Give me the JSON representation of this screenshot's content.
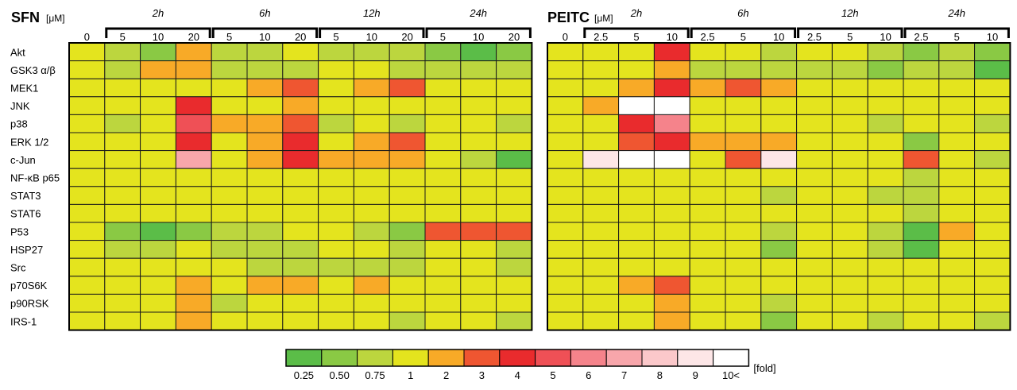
{
  "chart_data": {
    "type": "heatmap",
    "unit": "[fold]",
    "rows": [
      "Akt",
      "GSK3 α/β",
      "MEK1",
      "JNK",
      "p38",
      "ERK 1/2",
      "c-Jun",
      "NF-κB p65",
      "STAT3",
      "STAT6",
      "P53",
      "HSP27",
      "Src",
      "p70S6K",
      "p90RSK",
      "IRS-1"
    ],
    "panels": [
      {
        "name": "sfn",
        "title": "SFN",
        "unit": "[μM]",
        "columns": [
          {
            "time": "",
            "dose": "0"
          },
          {
            "time": "2h",
            "dose": "5"
          },
          {
            "time": "2h",
            "dose": "10"
          },
          {
            "time": "2h",
            "dose": "20"
          },
          {
            "time": "6h",
            "dose": "5"
          },
          {
            "time": "6h",
            "dose": "10"
          },
          {
            "time": "6h",
            "dose": "20"
          },
          {
            "time": "12h",
            "dose": "5"
          },
          {
            "time": "12h",
            "dose": "10"
          },
          {
            "time": "12h",
            "dose": "20"
          },
          {
            "time": "24h",
            "dose": "5"
          },
          {
            "time": "24h",
            "dose": "10"
          },
          {
            "time": "24h",
            "dose": "20"
          }
        ],
        "time_groups": [
          {
            "label": "2h",
            "start": 1,
            "end": 3
          },
          {
            "label": "6h",
            "start": 4,
            "end": 6
          },
          {
            "label": "12h",
            "start": 7,
            "end": 9
          },
          {
            "label": "24h",
            "start": 10,
            "end": 12
          }
        ],
        "values": [
          [
            1,
            0.75,
            0.5,
            2,
            0.75,
            0.75,
            1,
            0.75,
            0.75,
            0.75,
            0.5,
            0.25,
            0.5
          ],
          [
            1,
            0.75,
            2,
            2,
            0.75,
            0.75,
            0.75,
            1,
            1,
            0.75,
            0.75,
            0.75,
            0.75
          ],
          [
            1,
            1,
            1,
            1,
            1,
            2,
            3,
            1,
            2,
            3,
            1,
            1,
            1
          ],
          [
            1,
            1,
            1,
            4,
            1,
            1,
            2,
            1,
            1,
            1,
            1,
            1,
            1
          ],
          [
            1,
            0.75,
            1,
            5,
            2,
            2,
            3,
            0.75,
            1,
            0.75,
            1,
            1,
            0.75
          ],
          [
            1,
            1,
            1,
            4,
            1,
            2,
            4,
            1,
            2,
            3,
            1,
            1,
            1
          ],
          [
            1,
            1,
            1,
            7,
            1,
            2,
            4,
            2,
            2,
            2,
            1,
            0.75,
            0.25
          ],
          [
            1,
            1,
            1,
            1,
            1,
            1,
            1,
            1,
            1,
            1,
            1,
            1,
            1
          ],
          [
            1,
            1,
            1,
            1,
            1,
            1,
            1,
            1,
            1,
            1,
            1,
            1,
            1
          ],
          [
            1,
            1,
            1,
            1,
            1,
            1,
            1,
            1,
            1,
            1,
            1,
            1,
            1
          ],
          [
            1,
            0.5,
            0.25,
            0.5,
            0.75,
            0.75,
            1,
            1,
            0.75,
            0.5,
            3,
            3,
            3
          ],
          [
            1,
            0.75,
            0.75,
            1,
            0.75,
            0.75,
            0.75,
            1,
            1,
            0.75,
            1,
            1,
            0.75
          ],
          [
            1,
            1,
            1,
            1,
            1,
            0.75,
            0.75,
            0.75,
            0.75,
            0.75,
            1,
            1,
            0.75
          ],
          [
            1,
            1,
            1,
            2,
            1,
            2,
            2,
            1,
            2,
            1,
            1,
            1,
            1
          ],
          [
            1,
            1,
            1,
            2,
            0.75,
            1,
            1,
            1,
            1,
            1,
            1,
            1,
            1
          ],
          [
            1,
            1,
            1,
            2,
            1,
            1,
            1,
            1,
            1,
            0.75,
            1,
            1,
            0.75
          ]
        ]
      },
      {
        "name": "peitc",
        "title": "PEITC",
        "unit": "[μM]",
        "columns": [
          {
            "time": "",
            "dose": "0"
          },
          {
            "time": "2h",
            "dose": "2.5"
          },
          {
            "time": "2h",
            "dose": "5"
          },
          {
            "time": "2h",
            "dose": "10"
          },
          {
            "time": "6h",
            "dose": "2.5"
          },
          {
            "time": "6h",
            "dose": "5"
          },
          {
            "time": "6h",
            "dose": "10"
          },
          {
            "time": "12h",
            "dose": "2.5"
          },
          {
            "time": "12h",
            "dose": "5"
          },
          {
            "time": "12h",
            "dose": "10"
          },
          {
            "time": "24h",
            "dose": "2.5"
          },
          {
            "time": "24h",
            "dose": "5"
          },
          {
            "time": "24h",
            "dose": "10"
          }
        ],
        "time_groups": [
          {
            "label": "2h",
            "start": 1,
            "end": 3
          },
          {
            "label": "6h",
            "start": 4,
            "end": 6
          },
          {
            "label": "12h",
            "start": 7,
            "end": 9
          },
          {
            "label": "24h",
            "start": 10,
            "end": 12
          }
        ],
        "values": [
          [
            1,
            1,
            1,
            4,
            1,
            1,
            0.75,
            1,
            1,
            0.75,
            0.5,
            0.75,
            0.5
          ],
          [
            1,
            1,
            1,
            2,
            0.75,
            0.75,
            0.75,
            0.75,
            0.75,
            0.5,
            0.75,
            0.75,
            0.25
          ],
          [
            1,
            1,
            2,
            4,
            2,
            3,
            2,
            1,
            1,
            1,
            1,
            1,
            1
          ],
          [
            1,
            2,
            10,
            10,
            1,
            1,
            1,
            1,
            1,
            1,
            1,
            1,
            1
          ],
          [
            1,
            1,
            4,
            6,
            1,
            1,
            1,
            1,
            1,
            0.75,
            1,
            1,
            0.75
          ],
          [
            1,
            1,
            3,
            4,
            2,
            2,
            2,
            1,
            1,
            1,
            0.5,
            1,
            1
          ],
          [
            1,
            9,
            10,
            10,
            1,
            3,
            9,
            1,
            1,
            1,
            3,
            1,
            0.75
          ],
          [
            1,
            1,
            1,
            1,
            1,
            1,
            1,
            1,
            1,
            1,
            0.75,
            1,
            1
          ],
          [
            1,
            1,
            1,
            1,
            1,
            1,
            0.75,
            1,
            1,
            0.75,
            0.75,
            1,
            1
          ],
          [
            1,
            1,
            1,
            1,
            1,
            1,
            1,
            1,
            1,
            1,
            0.75,
            1,
            1
          ],
          [
            1,
            1,
            1,
            1,
            1,
            1,
            0.75,
            1,
            1,
            0.75,
            0.25,
            2,
            1
          ],
          [
            1,
            1,
            1,
            1,
            1,
            1,
            0.5,
            1,
            1,
            0.75,
            0.25,
            1,
            1
          ],
          [
            1,
            1,
            1,
            1,
            1,
            1,
            1,
            1,
            1,
            1,
            1,
            1,
            1
          ],
          [
            1,
            1,
            2,
            3,
            1,
            1,
            1,
            1,
            1,
            1,
            1,
            1,
            1
          ],
          [
            1,
            1,
            1,
            2,
            1,
            1,
            0.75,
            1,
            1,
            1,
            1,
            1,
            1
          ],
          [
            1,
            1,
            1,
            2,
            1,
            1,
            0.5,
            1,
            1,
            0.75,
            1,
            1,
            0.75
          ]
        ]
      }
    ],
    "legend": {
      "labels": [
        "0.25",
        "0.50",
        "0.75",
        "1",
        "2",
        "3",
        "4",
        "5",
        "6",
        "7",
        "8",
        "9",
        "10<"
      ],
      "values": [
        0.25,
        0.5,
        0.75,
        1,
        2,
        3,
        4,
        5,
        6,
        7,
        8,
        9,
        10
      ],
      "colors": [
        "#5bbd48",
        "#8ac944",
        "#bcd63e",
        "#e4e41e",
        "#f8aa27",
        "#ef5631",
        "#e92b2d",
        "#ef5056",
        "#f5838b",
        "#f8a6ab",
        "#fbc8ca",
        "#fde6e7",
        "#ffffff"
      ]
    },
    "colors": {
      "0.25": "#5bbd48",
      "0.5": "#8ac944",
      "0.75": "#bcd63e",
      "1": "#e4e41e",
      "1.2": "#f6ea12",
      "2": "#f8aa27",
      "3": "#ef5631",
      "4": "#e92b2d",
      "5": "#ef5056",
      "6": "#f5838b",
      "7": "#f8a6ab",
      "8": "#fbc8ca",
      "9": "#fde6e7",
      "10": "#ffffff"
    }
  }
}
